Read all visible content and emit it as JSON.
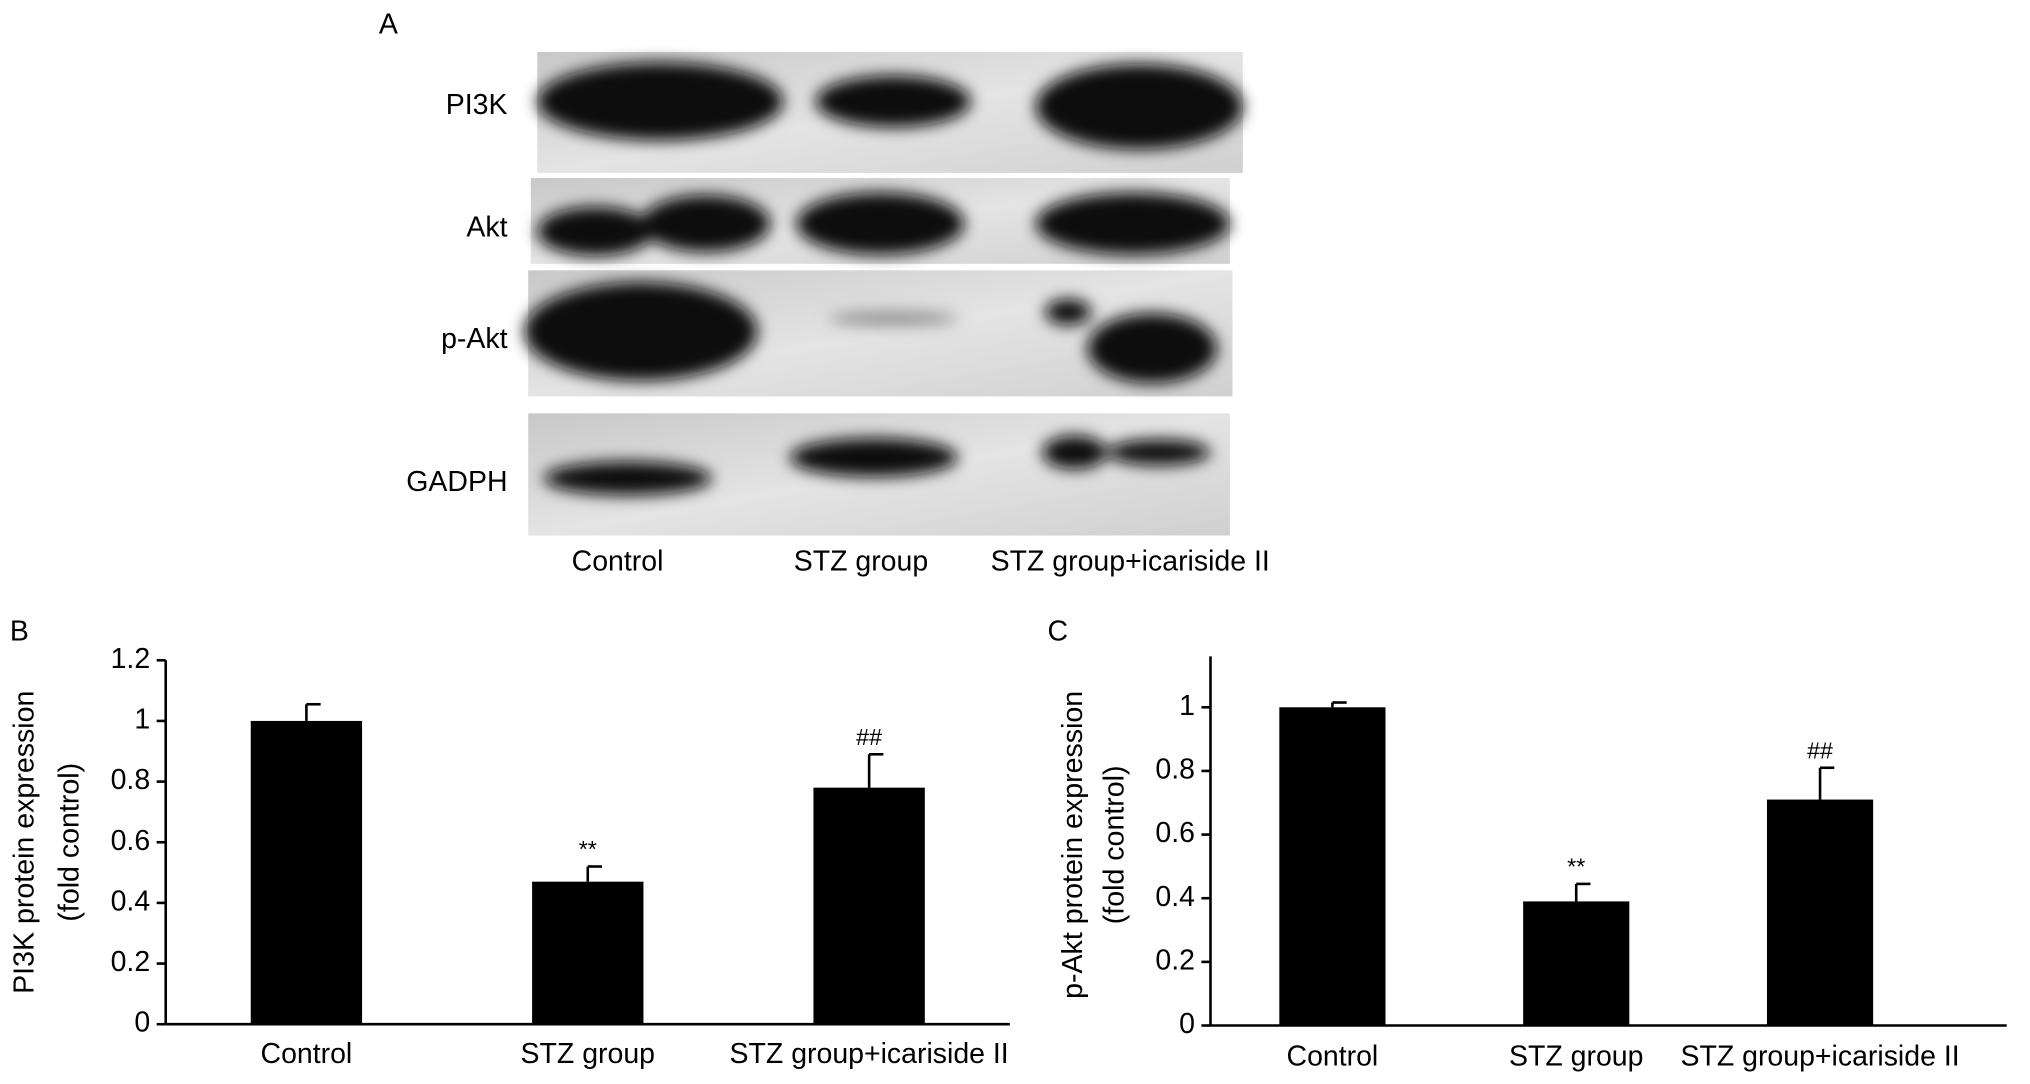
{
  "blot": {
    "panel": "A",
    "rows": [
      "PI3K",
      "Akt",
      "p-Akt",
      "GADPH"
    ],
    "lanes": [
      "Control",
      "STZ group",
      "STZ group+icariside II"
    ]
  },
  "chart_data": [
    {
      "type": "bar",
      "panel": "B",
      "ylabel": [
        "PI3K protein expression",
        "(fold control)"
      ],
      "categories": [
        "Control",
        "STZ group",
        "STZ group+icariside II"
      ],
      "values": [
        1.0,
        0.47,
        0.78
      ],
      "errors": [
        0.055,
        0.05,
        0.11
      ],
      "significance": [
        null,
        "**",
        "##"
      ],
      "color": "#000000",
      "ylim": [
        0,
        1.2
      ],
      "yticks": [
        0,
        0.2,
        0.4,
        0.6,
        0.8,
        1,
        1.2
      ]
    },
    {
      "type": "bar",
      "panel": "C",
      "ylabel": [
        "p-Akt protein expression",
        "(fold control)"
      ],
      "categories": [
        "Control",
        "STZ group",
        "STZ group+icariside II"
      ],
      "values": [
        1.0,
        0.39,
        0.71
      ],
      "errors": [
        0.015,
        0.055,
        0.1
      ],
      "significance": [
        null,
        "**",
        "##"
      ],
      "color": "#000000",
      "ylim": [
        0,
        1.16
      ],
      "yticks": [
        0,
        0.2,
        0.4,
        0.6,
        0.8,
        1
      ]
    }
  ]
}
